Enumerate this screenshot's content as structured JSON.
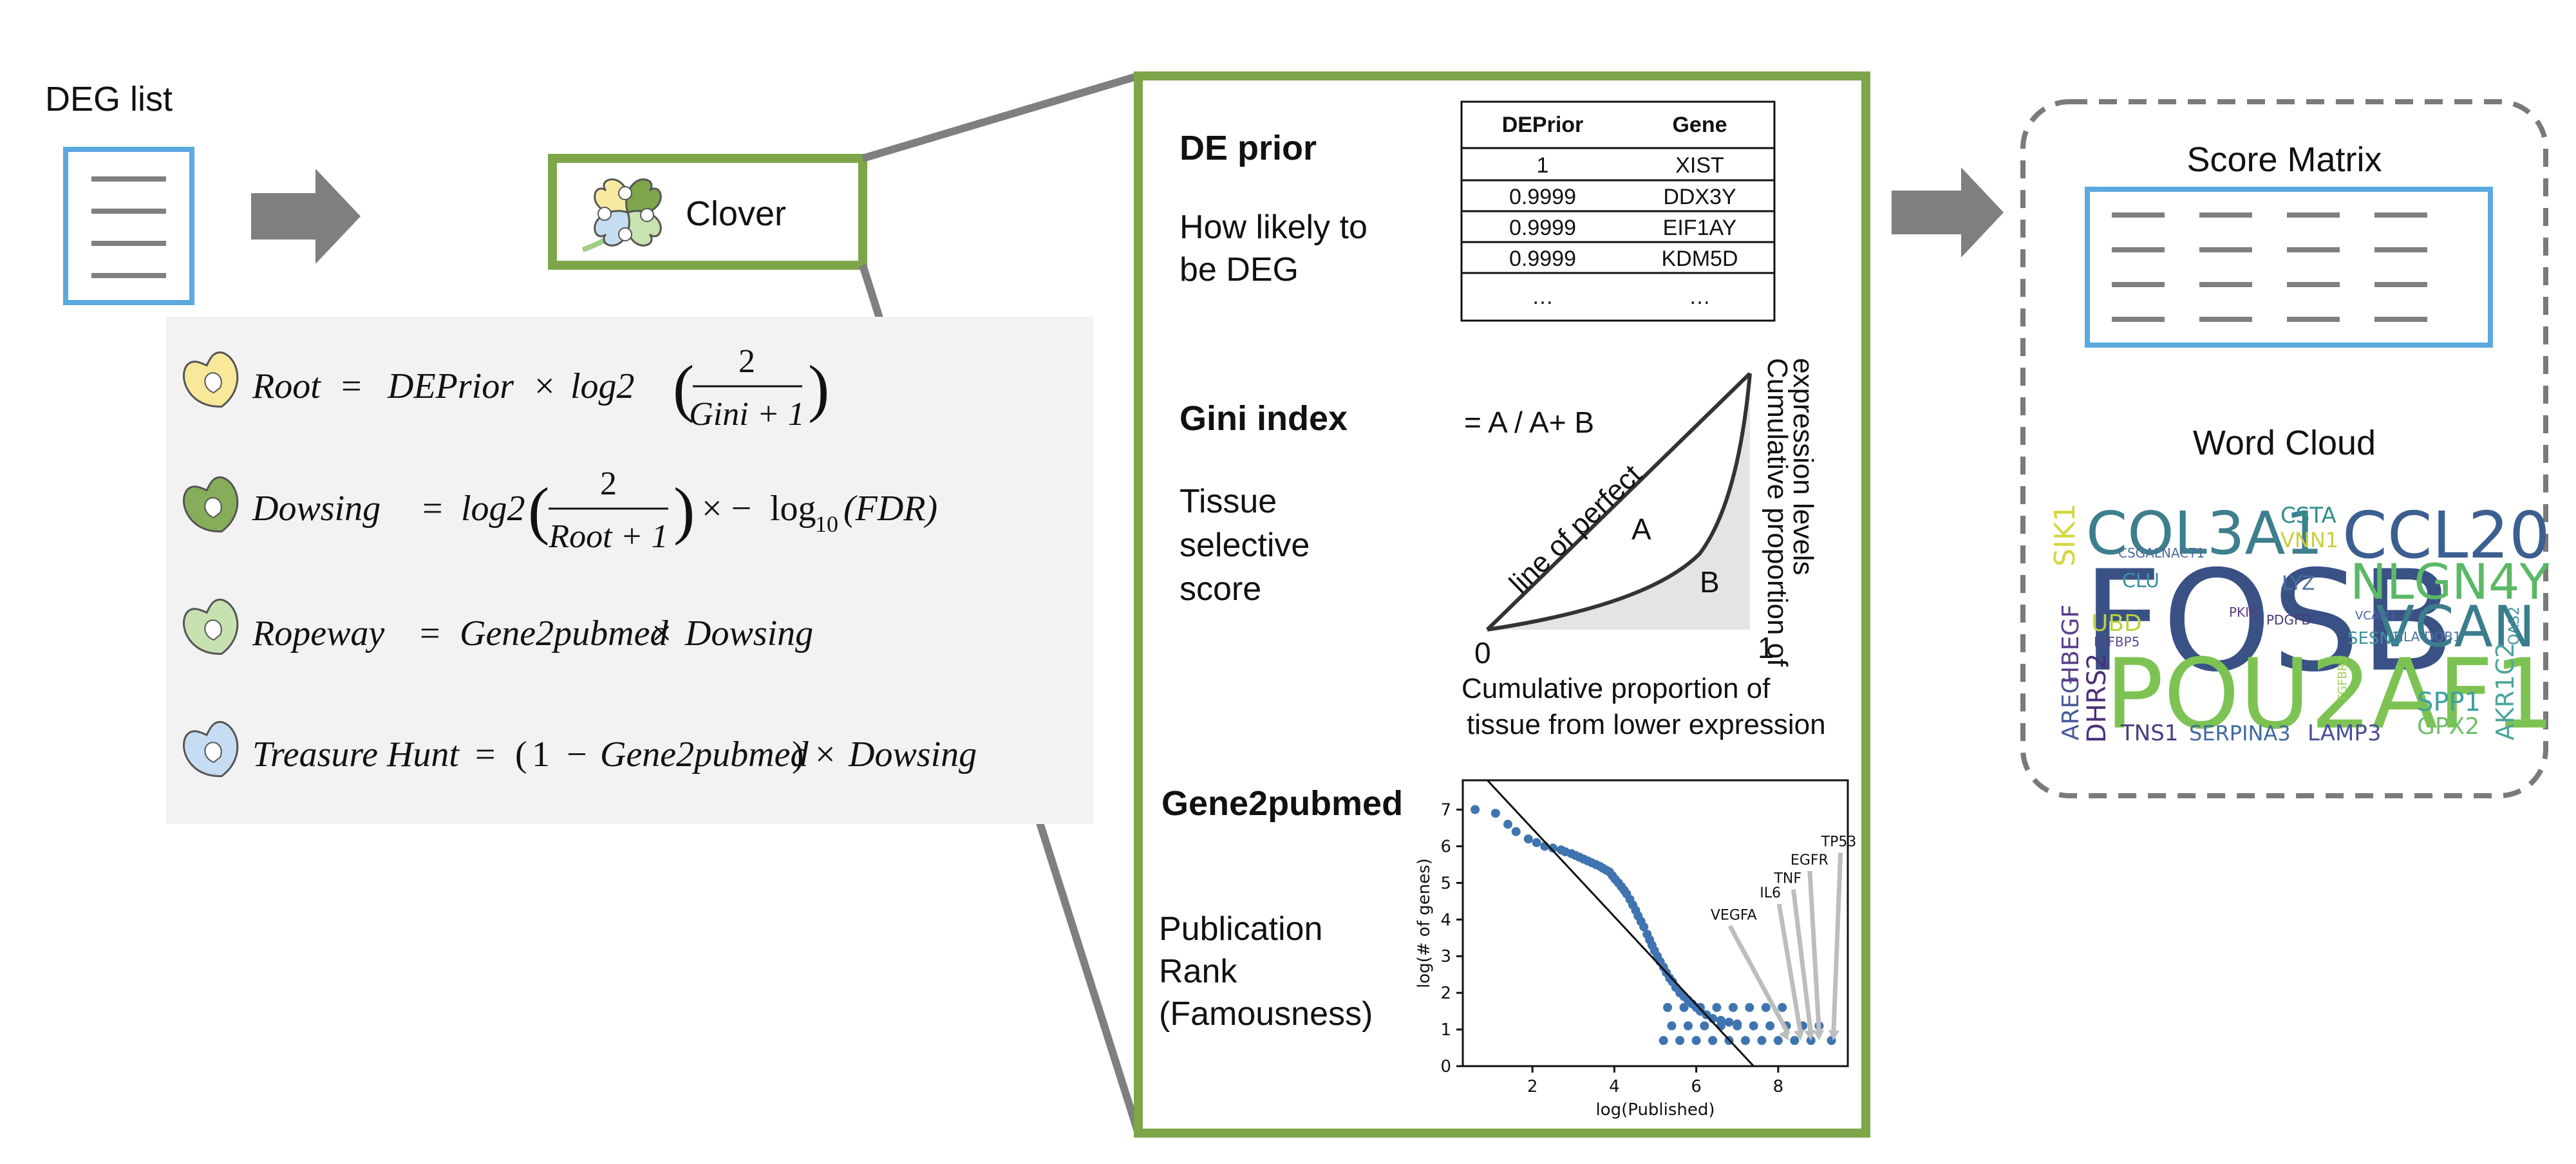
{
  "deg_list": {
    "label": "DEG list"
  },
  "clover": {
    "label": "Clover"
  },
  "formulas": {
    "root": {
      "lhs": "Root",
      "a": "DEPrior",
      "b": "log2",
      "num": "2",
      "den": "Gini + 1"
    },
    "dowsing": {
      "lhs": "Dowsing",
      "b": "log2",
      "num": "2",
      "den": "Root + 1",
      "log": "log",
      "sub": "10",
      "arg": "(FDR)"
    },
    "ropeway": {
      "lhs": "Ropeway",
      "a": "Gene2pubmed",
      "b": "Dowsing"
    },
    "treasure": {
      "lhs": "Treasure Hunt",
      "one": "1",
      "a": "Gene2pubmed",
      "b": "Dowsing"
    }
  },
  "de_prior": {
    "title": "DE prior",
    "desc": [
      "How likely to",
      "be DEG"
    ],
    "table": {
      "headers": [
        "DEPrior",
        "Gene"
      ],
      "rows": [
        [
          "1",
          "XIST"
        ],
        [
          "0.9999",
          "DDX3Y"
        ],
        [
          "0.9999",
          "EIF1AY"
        ],
        [
          "0.9999",
          "KDM5D"
        ],
        [
          "…",
          "…"
        ]
      ]
    }
  },
  "gini": {
    "title": "Gini index",
    "desc": [
      "Tissue",
      "selective",
      "score"
    ],
    "formula": "= A / A+ B",
    "line_label": "line of perfect",
    "area_a": "A",
    "area_b": "B",
    "x0": "0",
    "x1": "1",
    "xlabel": [
      "Cumulative proportion of",
      "tissue from lower expression"
    ],
    "ylabel": [
      "Cumulative proportion of",
      "expression levels"
    ]
  },
  "gene2pubmed": {
    "title": "Gene2pubmed",
    "desc": [
      "Publication",
      "Rank",
      "(Famousness)"
    ]
  },
  "chart_data": {
    "type": "scatter",
    "xlabel": "log(Published)",
    "ylabel": "log(# of genes)",
    "xlim": [
      0.3,
      9.7
    ],
    "ylim": [
      0,
      7.8
    ],
    "xticks": [
      2,
      4,
      6,
      8
    ],
    "yticks": [
      0,
      1,
      2,
      3,
      4,
      5,
      6,
      7
    ],
    "series": [
      {
        "points": [
          [
            0.6,
            7.0
          ],
          [
            1.1,
            6.9
          ],
          [
            1.4,
            6.6
          ],
          [
            1.6,
            6.4
          ],
          [
            1.9,
            6.2
          ],
          [
            2.1,
            6.1
          ],
          [
            2.3,
            6.0
          ],
          [
            2.5,
            5.95
          ],
          [
            2.7,
            5.9
          ],
          [
            2.8,
            5.85
          ],
          [
            2.95,
            5.8
          ],
          [
            3.05,
            5.75
          ],
          [
            3.15,
            5.7
          ],
          [
            3.25,
            5.65
          ],
          [
            3.35,
            5.6
          ],
          [
            3.45,
            5.55
          ],
          [
            3.55,
            5.5
          ],
          [
            3.65,
            5.45
          ],
          [
            3.72,
            5.4
          ],
          [
            3.8,
            5.35
          ],
          [
            3.88,
            5.3
          ],
          [
            3.95,
            5.2
          ],
          [
            4.02,
            5.1
          ],
          [
            4.1,
            5.0
          ],
          [
            4.17,
            4.9
          ],
          [
            4.24,
            4.8
          ],
          [
            4.3,
            4.7
          ],
          [
            4.38,
            4.55
          ],
          [
            4.45,
            4.4
          ],
          [
            4.52,
            4.25
          ],
          [
            4.58,
            4.1
          ],
          [
            4.65,
            3.95
          ],
          [
            4.72,
            3.8
          ],
          [
            4.8,
            3.6
          ],
          [
            4.86,
            3.45
          ],
          [
            4.92,
            3.3
          ],
          [
            4.98,
            3.15
          ],
          [
            5.05,
            3.0
          ],
          [
            5.12,
            2.85
          ],
          [
            5.2,
            2.7
          ],
          [
            5.27,
            2.55
          ],
          [
            5.35,
            2.4
          ],
          [
            5.42,
            2.3
          ],
          [
            5.5,
            2.15
          ],
          [
            5.6,
            2.0
          ],
          [
            5.7,
            1.9
          ],
          [
            5.8,
            1.8
          ],
          [
            5.9,
            1.7
          ],
          [
            6.0,
            1.6
          ],
          [
            6.1,
            1.5
          ],
          [
            6.25,
            1.4
          ],
          [
            6.4,
            1.3
          ],
          [
            6.6,
            1.25
          ],
          [
            6.8,
            1.2
          ],
          [
            7.0,
            1.15
          ],
          [
            5.2,
            0.7
          ],
          [
            5.6,
            0.7
          ],
          [
            6.0,
            0.7
          ],
          [
            6.4,
            0.7
          ],
          [
            6.8,
            0.7
          ],
          [
            7.2,
            0.7
          ],
          [
            7.6,
            0.7
          ],
          [
            8.0,
            0.7
          ],
          [
            8.4,
            0.7
          ],
          [
            8.8,
            0.7
          ],
          [
            9.3,
            0.7
          ],
          [
            5.4,
            1.1
          ],
          [
            5.8,
            1.1
          ],
          [
            6.2,
            1.1
          ],
          [
            6.6,
            1.1
          ],
          [
            7.0,
            1.1
          ],
          [
            7.4,
            1.1
          ],
          [
            7.8,
            1.1
          ],
          [
            8.2,
            1.1
          ],
          [
            8.6,
            1.1
          ],
          [
            9.0,
            1.1
          ],
          [
            5.3,
            1.6
          ],
          [
            5.7,
            1.6
          ],
          [
            6.1,
            1.6
          ],
          [
            6.5,
            1.6
          ],
          [
            6.9,
            1.6
          ],
          [
            7.3,
            1.6
          ],
          [
            7.7,
            1.6
          ],
          [
            8.1,
            1.6
          ]
        ]
      }
    ],
    "fit_line": [
      [
        0.9,
        7.8
      ],
      [
        7.4,
        0.0
      ]
    ],
    "annotations": [
      {
        "label": "VEGFA",
        "x": 8.25,
        "y": 0.7
      },
      {
        "label": "IL6",
        "x": 8.55,
        "y": 0.7
      },
      {
        "label": "TNF",
        "x": 8.8,
        "y": 0.7
      },
      {
        "label": "EGFR",
        "x": 9.0,
        "y": 0.7
      },
      {
        "label": "TP53",
        "x": 9.35,
        "y": 0.7
      }
    ]
  },
  "score_matrix": {
    "label": "Score Matrix"
  },
  "word_cloud": {
    "label": "Word Cloud",
    "words": [
      {
        "text": "COL3A1",
        "color": "#3d7f8d"
      },
      {
        "text": "CSTA",
        "color": "#2f8f8a"
      },
      {
        "text": "VNN1",
        "color": "#c9cf3a"
      },
      {
        "text": "CCL20",
        "color": "#3c5f91"
      },
      {
        "text": "SIK1",
        "color": "#d4d63e"
      },
      {
        "text": "CSGALNACT1",
        "color": "#4d6aa0"
      },
      {
        "text": "FOSB",
        "color": "#3a5185"
      },
      {
        "text": "CLU",
        "color": "#3f8ea0"
      },
      {
        "text": "LYZ",
        "color": "#4a6f9c"
      },
      {
        "text": "NLGN4Y",
        "color": "#5bb866"
      },
      {
        "text": "VCAN",
        "color": "#3a7d8c"
      },
      {
        "text": "PKIB",
        "color": "#5a3c86"
      },
      {
        "text": "PDGFD",
        "color": "#4a3a7a"
      },
      {
        "text": "VCAM1",
        "color": "#4b5fa0"
      },
      {
        "text": "UBD",
        "color": "#b8d43e"
      },
      {
        "text": "IGFBP5",
        "color": "#5a4a8f"
      },
      {
        "text": "SESN3",
        "color": "#3b8f9a"
      },
      {
        "text": "HLA-DQB1",
        "color": "#4a6fa0"
      },
      {
        "text": "OAS2",
        "color": "#3f8fa0"
      },
      {
        "text": "AREG",
        "color": "#4a5a98"
      },
      {
        "text": "HBEGF",
        "color": "#5a3c8a"
      },
      {
        "text": "DHRS2",
        "color": "#4a2e7a"
      },
      {
        "text": "POU2AF1",
        "color": "#7dc353"
      },
      {
        "text": "TGFBR3",
        "color": "#9acd55"
      },
      {
        "text": "SPP1",
        "color": "#3f9fa0"
      },
      {
        "text": "AKR1C2",
        "color": "#4aa59a"
      },
      {
        "text": "TNS1",
        "color": "#4a3a80"
      },
      {
        "text": "SERPINA3",
        "color": "#3f6aa0"
      },
      {
        "text": "LAMP3",
        "color": "#4a4f98"
      },
      {
        "text": "GPX2",
        "color": "#6ebf68"
      }
    ]
  },
  "colors": {
    "green": "#7da54a",
    "blue": "#5aa9df",
    "gray_arrow": "#7f7f7f",
    "formula_bg": "#f2f2f2",
    "scatter": "#3f74b0",
    "dash": "#7a7a7a"
  },
  "icons": [
    "document-icon",
    "clover-icon",
    "arrow-right-icon",
    "table-icon",
    "leaf-icon"
  ]
}
